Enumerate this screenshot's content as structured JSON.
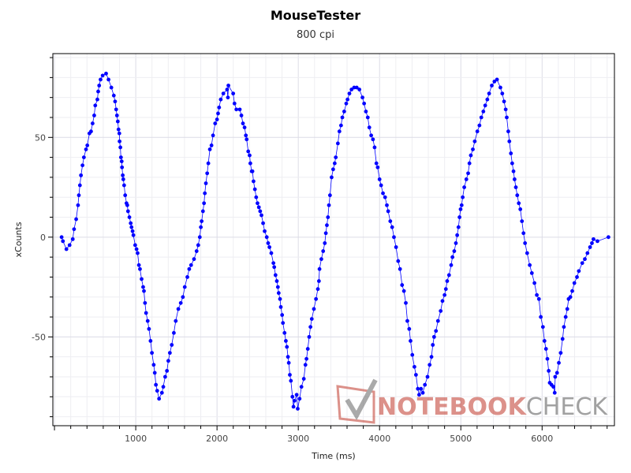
{
  "chart_data": {
    "type": "line",
    "title": "MouseTester",
    "subtitle": "800 cpi",
    "xlabel": "Time (ms)",
    "ylabel": "xCounts",
    "xlim": [
      -20,
      6890
    ],
    "ylim": [
      -94.5,
      92
    ],
    "xticks": [
      1000,
      2000,
      3000,
      4000,
      5000,
      6000
    ],
    "xtick_labels": [
      "1000",
      "2000",
      "3000",
      "4000",
      "5000",
      "6000"
    ],
    "yticks": [
      50,
      0,
      -50
    ],
    "ytick_labels": [
      "50",
      "0",
      "-50"
    ],
    "x_minor_step": 200,
    "y_minor_step": 10,
    "grid": true,
    "series_color": "#0000ff",
    "markers": true,
    "x": [
      88,
      104,
      147,
      186,
      225,
      241,
      267,
      290,
      300,
      313,
      326,
      345,
      362,
      388,
      404,
      430,
      450,
      469,
      489,
      502,
      528,
      538,
      550,
      567,
      593,
      635,
      665,
      700,
      730,
      746,
      759,
      769,
      779,
      788,
      798,
      801,
      811,
      818,
      827,
      831,
      840,
      847,
      857,
      870,
      886,
      896,
      905,
      922,
      938,
      948,
      961,
      971,
      993,
      1010,
      1023,
      1039,
      1052,
      1072,
      1091,
      1101,
      1114,
      1127,
      1147,
      1163,
      1182,
      1199,
      1221,
      1234,
      1248,
      1264,
      1287,
      1322,
      1339,
      1362,
      1384,
      1401,
      1420,
      1443,
      1469,
      1492,
      1524,
      1554,
      1580,
      1603,
      1635,
      1658,
      1681,
      1717,
      1749,
      1769,
      1788,
      1801,
      1811,
      1827,
      1840,
      1850,
      1863,
      1879,
      1893,
      1912,
      1932,
      1951,
      1977,
      2000,
      2013,
      2026,
      2046,
      2078,
      2124,
      2134,
      2140,
      2199,
      2215,
      2238,
      2280,
      2300,
      2319,
      2339,
      2355,
      2365,
      2384,
      2401,
      2410,
      2427,
      2436,
      2449,
      2466,
      2482,
      2498,
      2515,
      2531,
      2547,
      2567,
      2586,
      2612,
      2629,
      2645,
      2668,
      2694,
      2704,
      2720,
      2736,
      2749,
      2759,
      2775,
      2785,
      2801,
      2811,
      2831,
      2847,
      2860,
      2873,
      2883,
      2896,
      2909,
      2928,
      2941,
      2954,
      2980,
      2993,
      3016,
      3039,
      3068,
      3088,
      3101,
      3117,
      3134,
      3150,
      3166,
      3192,
      3218,
      3241,
      3254,
      3261,
      3284,
      3306,
      3326,
      3339,
      3352,
      3365,
      3377,
      3390,
      3410,
      3429,
      3448,
      3461,
      3487,
      3506,
      3526,
      3542,
      3565,
      3590,
      3606,
      3629,
      3655,
      3687,
      3719,
      3752,
      3790,
      3810,
      3832,
      3855,
      3874,
      3897,
      3919,
      3939,
      3961,
      3977,
      4000,
      4019,
      4042,
      4068,
      4090,
      4106,
      4132,
      4155,
      4177,
      4203,
      4229,
      4252,
      4277,
      4300,
      4323,
      4342,
      4365,
      4381,
      4403,
      4429,
      4448,
      4471,
      4487,
      4510,
      4532,
      4558,
      4590,
      4616,
      4639,
      4655,
      4671,
      4694,
      4719,
      4752,
      4774,
      4800,
      4816,
      4832,
      4855,
      4881,
      4897,
      4919,
      4939,
      4955,
      4971,
      4984,
      4997,
      5010,
      5023,
      5042,
      5068,
      5090,
      5106,
      5123,
      5148,
      5171,
      5203,
      5229,
      5252,
      5277,
      5300,
      5326,
      5348,
      5381,
      5413,
      5445,
      5487,
      5510,
      5532,
      5552,
      5565,
      5584,
      5597,
      5616,
      5632,
      5648,
      5661,
      5677,
      5694,
      5713,
      5732,
      5752,
      5771,
      5790,
      5816,
      5848,
      5874,
      5906,
      5935,
      5961,
      5984,
      6010,
      6029,
      6048,
      6065,
      6081,
      6094,
      6116,
      6139,
      6155,
      6161,
      6184,
      6206,
      6229,
      6252,
      6268,
      6290,
      6310,
      6326,
      6348,
      6371,
      6397,
      6429,
      6452,
      6494,
      6526,
      6558,
      6590,
      6613,
      6632,
      6681,
      6816
    ],
    "y": [
      0,
      -2,
      -6,
      -4,
      -1,
      4,
      9,
      16,
      21,
      26,
      31,
      36,
      40,
      44,
      46,
      52,
      53,
      57,
      61,
      66,
      69,
      73,
      76,
      79,
      81,
      82,
      79,
      75,
      71,
      68,
      64,
      61,
      58,
      54,
      52,
      48,
      45,
      40,
      38,
      35,
      31,
      29,
      26,
      21,
      17,
      16,
      13,
      10,
      7,
      5,
      3,
      1,
      -4,
      -6,
      -8,
      -14,
      -16,
      -21,
      -25,
      -27,
      -33,
      -38,
      -42,
      -46,
      -52,
      -58,
      -64,
      -68,
      -74,
      -77,
      -81,
      -78,
      -75,
      -70,
      -67,
      -62,
      -58,
      -54,
      -48,
      -42,
      -36,
      -33,
      -30,
      -25,
      -20,
      -16,
      -14,
      -11,
      -7,
      -4,
      0,
      5,
      8,
      13,
      17,
      22,
      27,
      32,
      37,
      44,
      46,
      51,
      57,
      59,
      62,
      65,
      69,
      72,
      74,
      70,
      76,
      72,
      67,
      64,
      64,
      61,
      57,
      55,
      51,
      49,
      43,
      41,
      37,
      33,
      33,
      28,
      24,
      20,
      17,
      15,
      13,
      11,
      7,
      3,
      0,
      -3,
      -5,
      -8,
      -13,
      -15,
      -19,
      -22,
      -25,
      -28,
      -31,
      -35,
      -39,
      -43,
      -48,
      -52,
      -55,
      -60,
      -63,
      -69,
      -72,
      -80,
      -85,
      -82,
      -79,
      -86,
      -81,
      -75,
      -71,
      -64,
      -61,
      -56,
      -50,
      -45,
      -41,
      -36,
      -31,
      -26,
      -22,
      -16,
      -11,
      -7,
      -3,
      2,
      6,
      10,
      16,
      21,
      30,
      34,
      37,
      40,
      47,
      53,
      56,
      60,
      63,
      67,
      69,
      72,
      74,
      75,
      75,
      74,
      70,
      67,
      63,
      60,
      55,
      51,
      49,
      45,
      37,
      35,
      29,
      26,
      22,
      20,
      16,
      13,
      8,
      5,
      0,
      -5,
      -12,
      -16,
      -24,
      -27,
      -33,
      -42,
      -46,
      -52,
      -59,
      -65,
      -69,
      -76,
      -79,
      -76,
      -78,
      -74,
      -70,
      -64,
      -60,
      -54,
      -50,
      -47,
      -42,
      -37,
      -32,
      -29,
      -26,
      -22,
      -19,
      -14,
      -10,
      -7,
      -3,
      1,
      5,
      10,
      14,
      16,
      20,
      25,
      29,
      32,
      37,
      41,
      44,
      48,
      53,
      56,
      60,
      63,
      66,
      69,
      72,
      76,
      78,
      79,
      75,
      72,
      68,
      64,
      60,
      53,
      48,
      42,
      37,
      33,
      29,
      25,
      21,
      17,
      14,
      8,
      2,
      -3,
      -8,
      -14,
      -18,
      -23,
      -29,
      -31,
      -40,
      -45,
      -52,
      -56,
      -61,
      -67,
      -73,
      -74,
      -75,
      -78,
      -70,
      -68,
      -63,
      -58,
      -51,
      -45,
      -40,
      -36,
      -31,
      -30,
      -27,
      -23,
      -20,
      -17,
      -13,
      -11,
      -8,
      -5,
      -3,
      -1,
      -2,
      0
    ]
  },
  "watermark": {
    "logo_text_a": "NOTEBOOK",
    "logo_text_b": "CHECK",
    "color_a": "#c0392b",
    "color_b": "#555555"
  }
}
